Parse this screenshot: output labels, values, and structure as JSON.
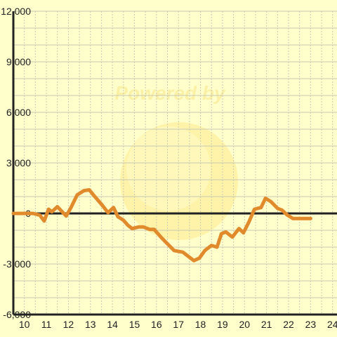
{
  "watermark": {
    "text": "Powered by"
  },
  "colors": {
    "background": "#ffffcc",
    "line": "#e08a2c",
    "axis": "#222222",
    "grid": "#c9c9b3",
    "tick_text": "#222222"
  },
  "chart_data": {
    "type": "line",
    "title": "",
    "xlabel": "",
    "ylabel": "",
    "xlim": [
      9.5,
      24.2
    ],
    "ylim": [
      -6000,
      12000
    ],
    "x_ticks": [
      10,
      11,
      12,
      13,
      14,
      15,
      16,
      17,
      18,
      19,
      20,
      21,
      22,
      23,
      24
    ],
    "x_tick_labels": [
      "10",
      "11",
      "12",
      "13",
      "14",
      "15",
      "16",
      "17",
      "18",
      "19",
      "20",
      "21",
      "22",
      "23",
      "24"
    ],
    "y_ticks": [
      -6000,
      -3000,
      0,
      3000,
      6000,
      9000,
      12000
    ],
    "y_tick_labels": [
      "-6,000",
      "-3,000",
      "0",
      "3,000",
      "6,000",
      "9,000",
      "12,000"
    ],
    "grid": true,
    "series": [
      {
        "x": [
          9.5,
          10.0,
          10.4,
          10.7,
          10.9,
          11.1,
          11.25,
          11.5,
          11.9,
          12.1,
          12.4,
          12.7,
          12.95,
          13.2,
          13.5,
          13.8,
          14.05,
          14.25,
          14.5,
          14.7,
          14.9,
          15.2,
          15.4,
          15.7,
          15.9,
          16.2,
          16.5,
          16.8,
          17.2,
          17.4,
          17.7,
          17.95,
          18.2,
          18.5,
          18.75,
          18.95,
          19.15,
          19.45,
          19.75,
          19.95,
          20.2,
          20.45,
          20.75,
          20.95,
          21.2,
          21.5,
          21.7,
          21.95,
          22.2,
          22.45,
          22.75,
          23.0
        ],
        "y": [
          0,
          0,
          0,
          -100,
          -450,
          250,
          100,
          400,
          -150,
          300,
          1100,
          1350,
          1400,
          1000,
          550,
          50,
          350,
          -200,
          -400,
          -700,
          -900,
          -800,
          -800,
          -950,
          -950,
          -1400,
          -1800,
          -2200,
          -2300,
          -2500,
          -2800,
          -2650,
          -2200,
          -1900,
          -2000,
          -1200,
          -1100,
          -1400,
          -900,
          -1150,
          -500,
          250,
          350,
          900,
          700,
          300,
          200,
          -100,
          -300,
          -300,
          -300,
          -300
        ]
      }
    ]
  }
}
